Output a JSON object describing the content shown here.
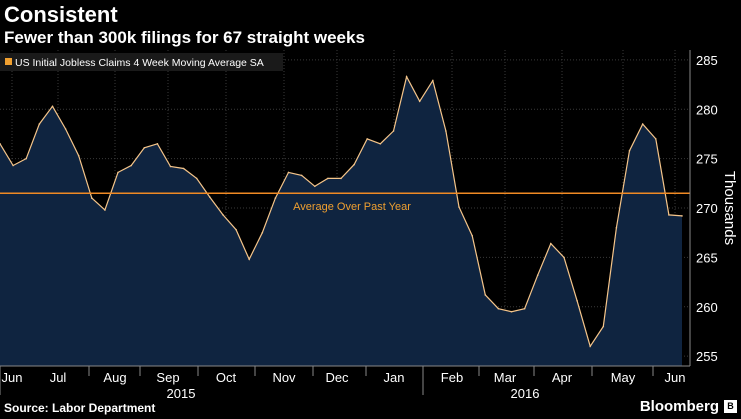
{
  "title": "Consistent",
  "subtitle": "Fewer than 300k filings for 67 straight weeks",
  "source": "Source: Labor Department",
  "brand": "Bloomberg",
  "colors": {
    "background": "#000000",
    "area_fill": "#0f2440",
    "line": "#f5c58a",
    "reference_line": "#f08a24",
    "reference_text": "#f0a030",
    "grid": "#3a3a3a"
  },
  "chart_data": {
    "type": "area",
    "legend": {
      "label": "US Initial Jobless Claims 4 Week Moving Average SA",
      "position": "top-left"
    },
    "ylabel": "Thousands",
    "y_axis_side": "right",
    "ylim": [
      254,
      286
    ],
    "yticks": [
      255,
      260,
      265,
      270,
      275,
      280,
      285
    ],
    "grid": true,
    "x_tick_labels": [
      "Jun",
      "Jul",
      "Aug",
      "Sep",
      "Oct",
      "Nov",
      "Dec",
      "Jan",
      "Feb",
      "Mar",
      "Apr",
      "May",
      "Jun"
    ],
    "x_year_labels": [
      "2015",
      "2016"
    ],
    "reference_line": {
      "label": "Average Over Past Year",
      "value": 271.5
    },
    "series": [
      {
        "values": [
          276.5,
          274.3,
          275.0,
          278.5,
          280.3,
          278.0,
          275.3,
          271.0,
          269.8,
          273.6,
          274.3,
          276.1,
          276.5,
          274.2,
          274.0,
          273.0,
          271.1,
          269.3,
          267.8,
          264.8,
          267.5,
          271.0,
          273.6,
          273.3,
          272.2,
          273.0,
          273.0,
          274.4,
          277.0,
          276.5,
          277.8,
          283.3,
          280.8,
          282.9,
          277.8,
          270.1,
          267.2,
          261.2,
          259.8,
          259.5,
          259.8,
          263.2,
          266.4,
          265.0,
          260.6,
          256.0,
          258.0,
          268.0,
          275.8,
          278.5,
          277.0,
          269.3,
          269.2
        ]
      }
    ]
  }
}
